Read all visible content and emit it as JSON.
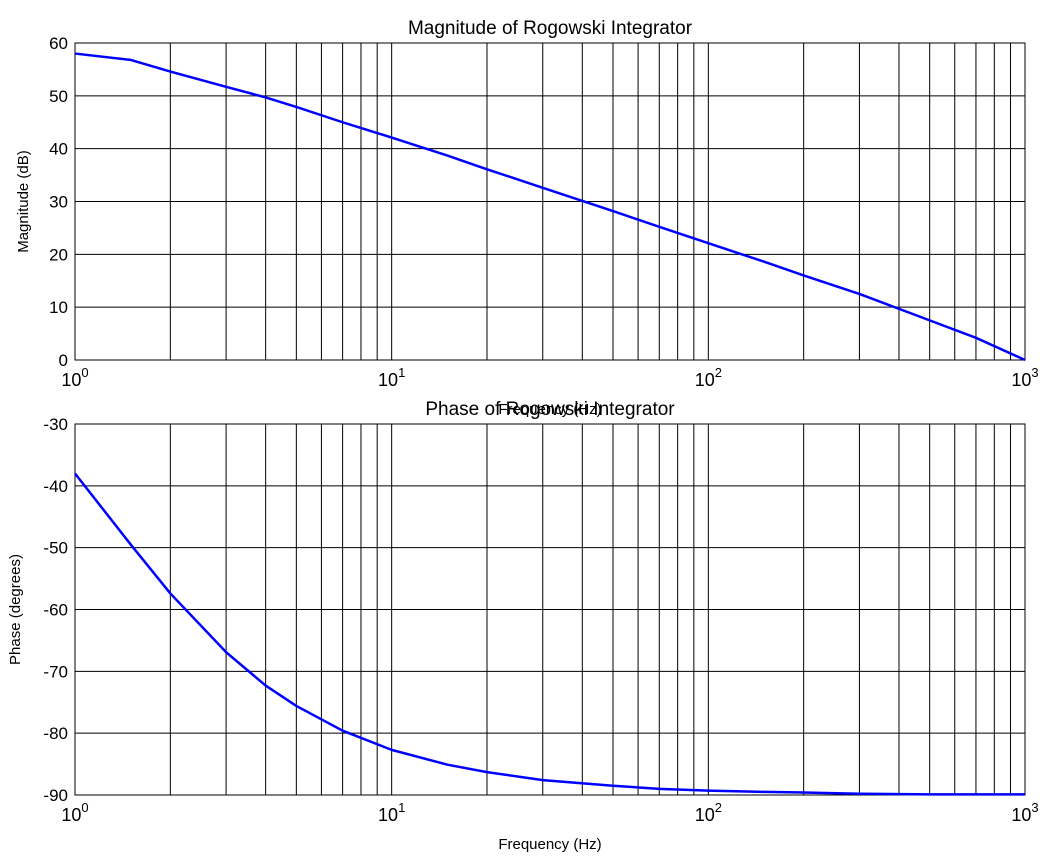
{
  "chart_data": [
    {
      "type": "line",
      "title": "Magnitude of Rogowski Integrator",
      "xlabel": "Frequency (Hz)",
      "ylabel": "Magnitude (dB)",
      "xscale": "log",
      "grid": true,
      "x": [
        1,
        1.5,
        2,
        3,
        4,
        5,
        7,
        10,
        15,
        20,
        30,
        50,
        70,
        100,
        150,
        200,
        300,
        500,
        700,
        1000
      ],
      "series": [
        {
          "color": "#0000ff",
          "values": [
            58,
            56.8,
            54.6,
            51.7,
            49.7,
            47.9,
            45,
            42.1,
            38.7,
            36.1,
            32.6,
            28.2,
            25.2,
            22.1,
            18.6,
            16,
            12.5,
            7.5,
            4.2,
            0
          ]
        }
      ],
      "xlim": [
        1,
        1000
      ],
      "xticks": [
        {
          "value": 1,
          "label": "10",
          "power": "0"
        },
        {
          "value": 10,
          "label": "10",
          "power": "1"
        },
        {
          "value": 100,
          "label": "10",
          "power": "2"
        },
        {
          "value": 1000,
          "label": "10",
          "power": "3"
        }
      ],
      "xminorticks": [
        2,
        3,
        4,
        5,
        6,
        7,
        8,
        9,
        20,
        30,
        40,
        50,
        60,
        70,
        80,
        90,
        200,
        300,
        400,
        500,
        600,
        700,
        800,
        900
      ],
      "ylim": [
        0,
        60
      ],
      "yticks": [
        0,
        10,
        20,
        30,
        40,
        50,
        60
      ]
    },
    {
      "type": "line",
      "title": "Phase of Rogowski Integrator",
      "xlabel": "Frequency (Hz)",
      "ylabel": "Phase (degrees)",
      "xscale": "log",
      "grid": true,
      "x": [
        1,
        1.5,
        2,
        3,
        4,
        5,
        7,
        10,
        15,
        20,
        30,
        50,
        70,
        100,
        150,
        200,
        300,
        500,
        700,
        1000
      ],
      "series": [
        {
          "color": "#0000ff",
          "values": [
            -38,
            -49.5,
            -57.4,
            -66.9,
            -72.3,
            -75.6,
            -79.6,
            -82.7,
            -85.1,
            -86.3,
            -87.6,
            -88.5,
            -89,
            -89.3,
            -89.5,
            -89.6,
            -89.8,
            -89.9,
            -89.9,
            -89.9
          ]
        }
      ],
      "xlim": [
        1,
        1000
      ],
      "xticks": [
        {
          "value": 1,
          "label": "10",
          "power": "0"
        },
        {
          "value": 10,
          "label": "10",
          "power": "1"
        },
        {
          "value": 100,
          "label": "10",
          "power": "2"
        },
        {
          "value": 1000,
          "label": "10",
          "power": "3"
        }
      ],
      "xminorticks": [
        2,
        3,
        4,
        5,
        6,
        7,
        8,
        9,
        20,
        30,
        40,
        50,
        60,
        70,
        80,
        90,
        200,
        300,
        400,
        500,
        600,
        700,
        800,
        900
      ],
      "ylim": [
        -90,
        -30
      ],
      "yticks": [
        -90,
        -80,
        -70,
        -60,
        -50,
        -40,
        -30
      ]
    }
  ]
}
